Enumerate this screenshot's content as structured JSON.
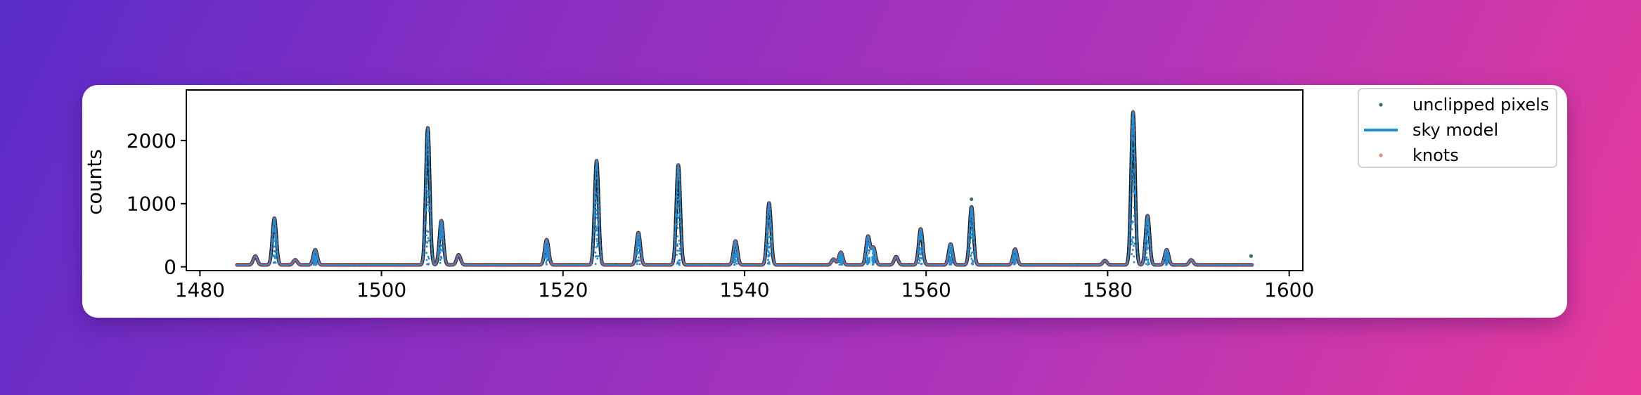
{
  "chart_data": {
    "type": "line",
    "title": "",
    "xlabel": "",
    "ylabel": "counts",
    "xlim": [
      1478.5,
      1601.5
    ],
    "ylim": [
      -60,
      2800
    ],
    "xticks": [
      1480,
      1500,
      1520,
      1540,
      1560,
      1580,
      1600
    ],
    "yticks": [
      0,
      1000,
      2000
    ],
    "grid": false,
    "legend_position": "outside-right-top",
    "x_range": [
      1484,
      1596
    ],
    "baseline": 30,
    "peaks": [
      {
        "x": 1486.1,
        "height": 170
      },
      {
        "x": 1488.2,
        "height": 770
      },
      {
        "x": 1490.5,
        "height": 110
      },
      {
        "x": 1492.7,
        "height": 270
      },
      {
        "x": 1505.1,
        "height": 2200
      },
      {
        "x": 1506.6,
        "height": 730
      },
      {
        "x": 1508.5,
        "height": 190
      },
      {
        "x": 1518.2,
        "height": 430
      },
      {
        "x": 1523.7,
        "height": 1680
      },
      {
        "x": 1528.3,
        "height": 540
      },
      {
        "x": 1532.7,
        "height": 1610
      },
      {
        "x": 1539.0,
        "height": 410
      },
      {
        "x": 1542.7,
        "height": 1010
      },
      {
        "x": 1549.8,
        "height": 120
      },
      {
        "x": 1550.6,
        "height": 230
      },
      {
        "x": 1553.6,
        "height": 480
      },
      {
        "x": 1554.2,
        "height": 300
      },
      {
        "x": 1556.7,
        "height": 160
      },
      {
        "x": 1559.4,
        "height": 600
      },
      {
        "x": 1562.7,
        "height": 360
      },
      {
        "x": 1565.0,
        "height": 950
      },
      {
        "x": 1569.8,
        "height": 280
      },
      {
        "x": 1579.7,
        "height": 100
      },
      {
        "x": 1582.8,
        "height": 2450
      },
      {
        "x": 1584.4,
        "height": 810
      },
      {
        "x": 1586.5,
        "height": 270
      },
      {
        "x": 1589.2,
        "height": 110
      }
    ],
    "outliers": [
      {
        "x": 1565.0,
        "y": 1070
      },
      {
        "x": 1595.8,
        "y": 170
      }
    ],
    "series": [
      {
        "name": "unclipped pixels",
        "kind": "scatter",
        "color": "#3b6b78"
      },
      {
        "name": "sky model",
        "kind": "line",
        "color": "#1f8fd8"
      },
      {
        "name": "knots",
        "kind": "scatter",
        "color": "#f08a86"
      }
    ],
    "knot_color": "#d9342f",
    "edge_color": "#1a1a1a"
  }
}
